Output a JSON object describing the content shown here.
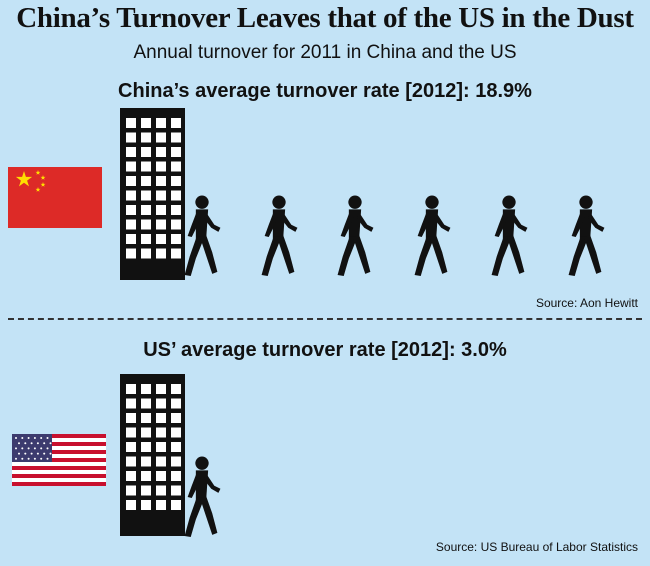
{
  "title": "China’s Turnover Leaves that of the US in the Dust",
  "subtitle": "Annual turnover for 2011 in China and the US",
  "sections": [
    {
      "country": "China",
      "heading": "China’s average turnover rate [2012]: 18.9%",
      "source": "Source: Aon Hewitt",
      "flag_icon": "china-flag-icon",
      "walkers": 6
    },
    {
      "country": "US",
      "heading": "US’ average turnover rate [2012]: 3.0%",
      "source": "Source: US Bureau of Labor Statistics",
      "flag_icon": "us-flag-icon",
      "walkers": 1
    }
  ],
  "colors": {
    "background": "#c3e3f6",
    "building": "#111111",
    "window": "#ffffff",
    "china_red": "#dd2a27",
    "china_star": "#ffde00",
    "us_red": "#c8102e",
    "us_blue": "#3c3b6e"
  },
  "chart_data": {
    "type": "pictogram",
    "categories": [
      "China",
      "US"
    ],
    "values": [
      18.9,
      3.0
    ],
    "unit": "%",
    "icon_counts": [
      6,
      1
    ]
  }
}
